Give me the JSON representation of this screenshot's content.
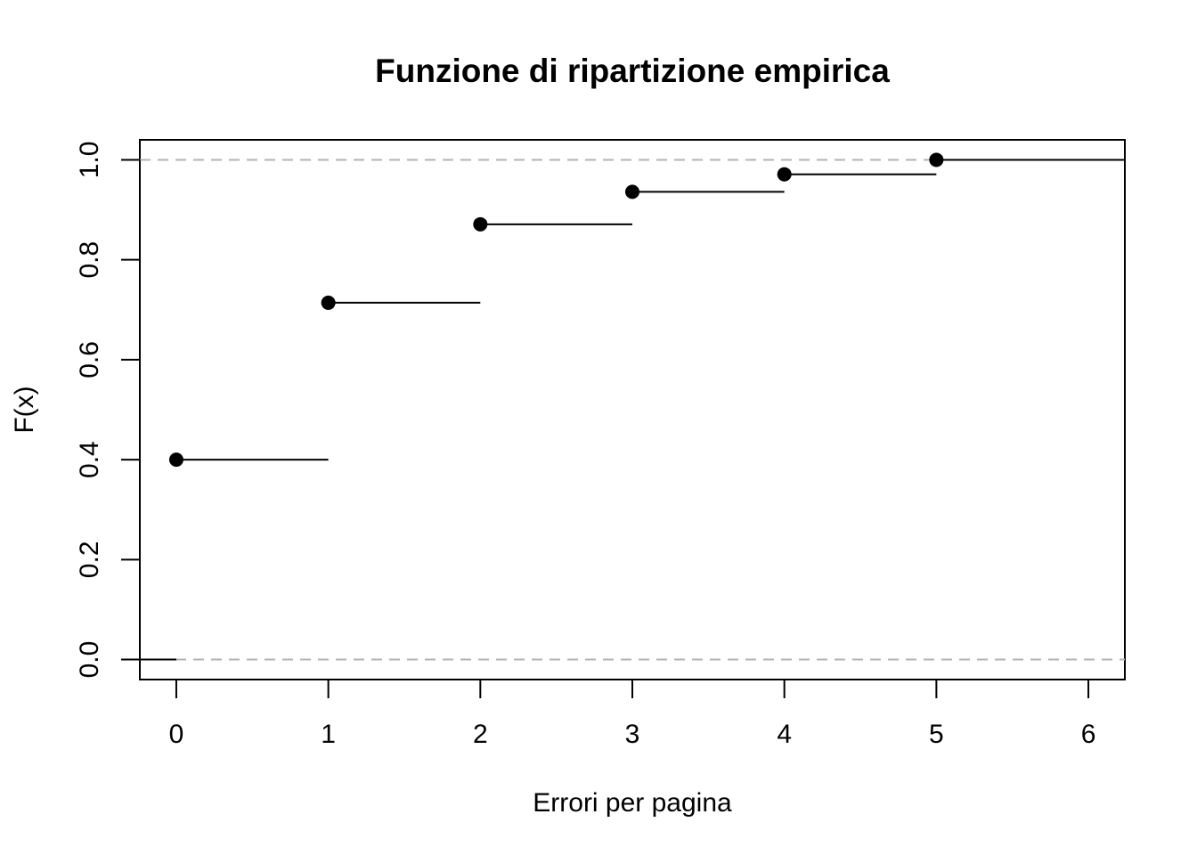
{
  "chart_data": {
    "type": "step",
    "title": "Funzione di ripartizione empirica",
    "xlabel": "Errori per pagina",
    "ylabel": "F(x)",
    "xlim": [
      -0.24,
      6.24
    ],
    "ylim": [
      -0.04,
      1.04
    ],
    "x_ticks": [
      0,
      1,
      2,
      3,
      4,
      5,
      6
    ],
    "y_ticks": [
      0.0,
      0.2,
      0.4,
      0.6,
      0.8,
      1.0
    ],
    "y_tick_labels": [
      "0.0",
      "0.2",
      "0.4",
      "0.6",
      "0.8",
      "1.0"
    ],
    "x": [
      0,
      1,
      2,
      3,
      4,
      5
    ],
    "y": [
      0.4,
      0.714,
      0.871,
      0.936,
      0.971,
      1.0
    ],
    "reference_lines_y": [
      0,
      1
    ],
    "grid": false,
    "legend": "none",
    "colors": {
      "step": "#000000",
      "reference": "#b3b3b3"
    }
  }
}
